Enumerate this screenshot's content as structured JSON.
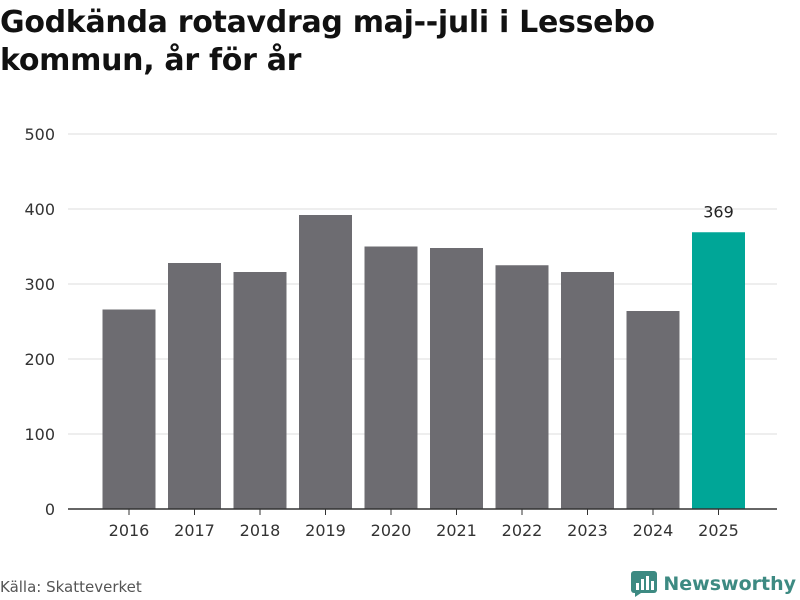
{
  "title": "Godkända rotavdrag maj--juli i Lessebo kommun, år för år",
  "source": "Källa: Skatteverket",
  "brand": {
    "name": "Newsworthy",
    "icon": "newsworthy-logo-icon"
  },
  "colors": {
    "bar": "#6d6c71",
    "highlight": "#00a697",
    "grid": "#dddddd",
    "axis": "#333333",
    "brand": "#3d8a82"
  },
  "chart_data": {
    "type": "bar",
    "title": "Godkända rotavdrag maj--juli i Lessebo kommun, år för år",
    "xlabel": "",
    "ylabel": "",
    "categories": [
      "2016",
      "2017",
      "2018",
      "2019",
      "2020",
      "2021",
      "2022",
      "2023",
      "2024",
      "2025"
    ],
    "values": [
      266,
      328,
      316,
      392,
      350,
      348,
      325,
      316,
      264,
      369
    ],
    "highlight_index": 9,
    "data_labels": [
      {
        "category": "2025",
        "text": "369"
      }
    ],
    "ylim": [
      0,
      500
    ],
    "yticks": [
      0,
      100,
      200,
      300,
      400,
      500
    ],
    "grid": true,
    "legend": "none"
  }
}
